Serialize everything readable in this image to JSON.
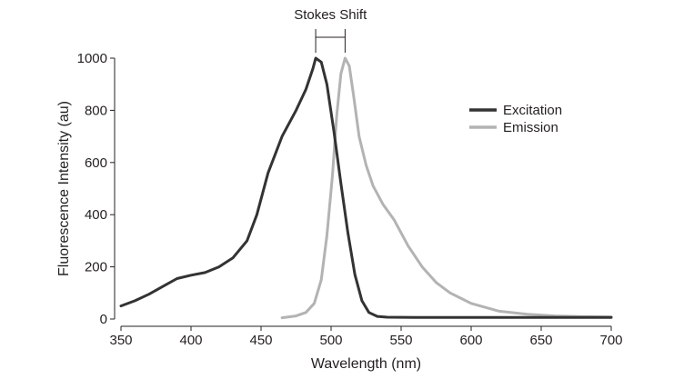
{
  "chart_data": {
    "type": "line",
    "title": "",
    "xlabel": "Wavelength (nm)",
    "ylabel": "Fluorescence Intensity (au)",
    "xlim": [
      350,
      700
    ],
    "ylim": [
      0,
      1000
    ],
    "xticks": [
      350,
      400,
      450,
      500,
      550,
      600,
      650,
      700
    ],
    "yticks": [
      0,
      200,
      400,
      600,
      800,
      1000
    ],
    "grid": false,
    "legend_position": "top-right",
    "annotation": {
      "text": "Stokes Shift",
      "from_x": 489,
      "to_x": 510
    },
    "series": [
      {
        "name": "Excitation",
        "color": "#333333",
        "points": [
          [
            350,
            50
          ],
          [
            360,
            70
          ],
          [
            370,
            95
          ],
          [
            380,
            125
          ],
          [
            390,
            155
          ],
          [
            400,
            168
          ],
          [
            410,
            178
          ],
          [
            420,
            200
          ],
          [
            430,
            235
          ],
          [
            440,
            300
          ],
          [
            447,
            400
          ],
          [
            455,
            560
          ],
          [
            465,
            700
          ],
          [
            475,
            800
          ],
          [
            482,
            880
          ],
          [
            487,
            960
          ],
          [
            489,
            1000
          ],
          [
            493,
            985
          ],
          [
            497,
            900
          ],
          [
            502,
            720
          ],
          [
            507,
            520
          ],
          [
            512,
            330
          ],
          [
            517,
            170
          ],
          [
            522,
            70
          ],
          [
            527,
            25
          ],
          [
            533,
            10
          ],
          [
            540,
            7
          ],
          [
            560,
            6
          ],
          [
            600,
            6
          ],
          [
            650,
            6
          ],
          [
            700,
            6
          ]
        ]
      },
      {
        "name": "Emission",
        "color": "#b3b3b3",
        "points": [
          [
            465,
            5
          ],
          [
            475,
            12
          ],
          [
            482,
            25
          ],
          [
            488,
            60
          ],
          [
            493,
            150
          ],
          [
            497,
            320
          ],
          [
            501,
            550
          ],
          [
            504,
            780
          ],
          [
            507,
            940
          ],
          [
            510,
            1000
          ],
          [
            513,
            970
          ],
          [
            516,
            860
          ],
          [
            520,
            700
          ],
          [
            525,
            590
          ],
          [
            530,
            510
          ],
          [
            537,
            440
          ],
          [
            545,
            380
          ],
          [
            555,
            280
          ],
          [
            565,
            200
          ],
          [
            575,
            140
          ],
          [
            585,
            100
          ],
          [
            600,
            60
          ],
          [
            620,
            30
          ],
          [
            640,
            18
          ],
          [
            660,
            12
          ],
          [
            680,
            9
          ],
          [
            700,
            8
          ]
        ]
      }
    ]
  }
}
